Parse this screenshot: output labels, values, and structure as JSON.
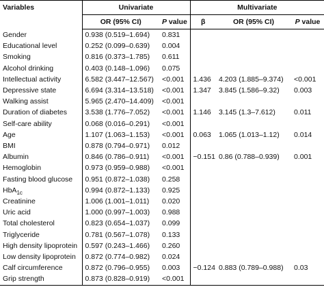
{
  "table": {
    "header": {
      "variables": "Variables",
      "univariate": "Univariate",
      "multivariate": "Multivariate",
      "cols": [
        {
          "text": "OR (95% CI)"
        },
        {
          "italic": "P",
          "rest": " value"
        },
        {
          "text": "β"
        },
        {
          "text": "OR (95% CI)"
        },
        {
          "italic": "P",
          "rest": " value"
        }
      ]
    },
    "rows": [
      {
        "label": "Gender",
        "cells": [
          "0.938 (0.519–1.694)",
          "0.831",
          null,
          null,
          null
        ]
      },
      {
        "label": "Educational level",
        "cells": [
          "0.252 (0.099–0.639)",
          "0.004",
          null,
          null,
          null
        ]
      },
      {
        "label": "Smoking",
        "cells": [
          "0.816 (0.373–1.785)",
          "0.611",
          null,
          null,
          null
        ]
      },
      {
        "label": "Alcohol drinking",
        "cells": [
          "0.403 (0.148–1.096)",
          "0.075",
          null,
          null,
          null
        ]
      },
      {
        "label": "Intellectual activity",
        "cells": [
          "6.582 (3.447–12.567)",
          "<0.001",
          "1.436",
          "4.203 (1.885–9.374)",
          "<0.001"
        ]
      },
      {
        "label": "Depressive state",
        "cells": [
          "6.694 (3.314–13.518)",
          "<0.001",
          "1.347",
          "3.845 (1.586–9.32)",
          "0.003"
        ]
      },
      {
        "label": "Walking assist",
        "cells": [
          "5.965 (2.470–14.409)",
          "<0.001",
          null,
          null,
          null
        ]
      },
      {
        "label": "Duration of diabetes",
        "cells": [
          "3.538 (1.776–7.052)",
          "<0.001",
          "1.146",
          "3.145 (1.3–7.612)",
          "0.011"
        ]
      },
      {
        "label": "Self-care ability",
        "cells": [
          "0.068 (0.016–0.291)",
          "<0.001",
          null,
          null,
          null
        ]
      },
      {
        "label": "Age",
        "cells": [
          "1.107 (1.063–1.153)",
          "<0.001",
          "0.063",
          "1.065 (1.013–1.12)",
          "0.014"
        ]
      },
      {
        "label": "BMI",
        "cells": [
          "0.878 (0.794–0.971)",
          "0.012",
          null,
          null,
          null
        ]
      },
      {
        "label": "Albumin",
        "cells": [
          "0.846 (0.786–0.911)",
          "<0.001",
          "−0.151",
          "0.86 (0.788–0.939)",
          "0.001"
        ]
      },
      {
        "label": "Hemoglobin",
        "cells": [
          "0.973 (0.959–0.988)",
          "<0.001",
          null,
          null,
          null
        ]
      },
      {
        "label": "Fasting blood glucose",
        "cells": [
          "0.951 (0.872–1.038)",
          "0.258",
          null,
          null,
          null
        ]
      },
      {
        "label": "HbA",
        "label_sub": "1c",
        "cells": [
          "0.994 (0.872–1.133)",
          "0.925",
          null,
          null,
          null
        ]
      },
      {
        "label": "Creatinine",
        "cells": [
          "1.006 (1.001–1.011)",
          "0.020",
          null,
          null,
          null
        ]
      },
      {
        "label": "Uric acid",
        "cells": [
          "1.000 (0.997–1.003)",
          "0.988",
          null,
          null,
          null
        ]
      },
      {
        "label": "Total cholesterol",
        "cells": [
          "0.823 (0.654–1.037)",
          "0.099",
          null,
          null,
          null
        ]
      },
      {
        "label": "Triglyceride",
        "cells": [
          "0.781 (0.567–1.078)",
          "0.133",
          null,
          null,
          null
        ]
      },
      {
        "label": "High density lipoprotein",
        "cells": [
          "0.597 (0.243–1.466)",
          "0.260",
          null,
          null,
          null
        ]
      },
      {
        "label": "Low density lipoprotein",
        "cells": [
          "0.872 (0.774–0.982)",
          "0.024",
          null,
          null,
          null
        ]
      },
      {
        "label": "Calf circumference",
        "cells": [
          "0.872 (0.796–0.955)",
          "0.003",
          "−0.124",
          "0.883 (0.789–0.988)",
          "0.03"
        ]
      },
      {
        "label": "Grip strength",
        "cells": [
          "0.873 (0.828–0.919)",
          "<0.001",
          null,
          null,
          null
        ]
      }
    ]
  }
}
